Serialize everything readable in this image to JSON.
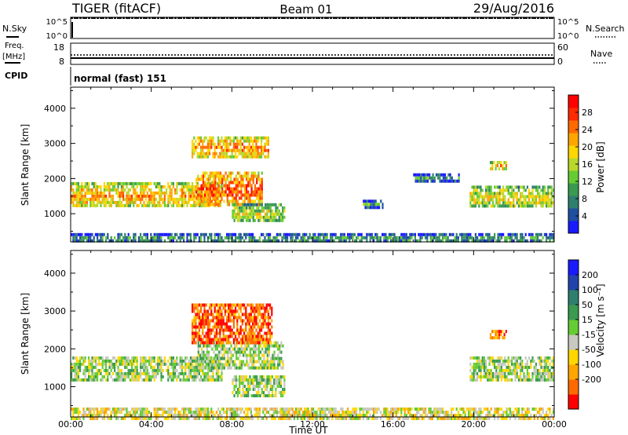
{
  "header": {
    "title": "TIGER (fitACF)",
    "beam": "Beam 01",
    "date": "29/Aug/2016"
  },
  "top_panels": {
    "nsky_label": "N.Sky",
    "nsearch_label": "N.Search",
    "noise_ticks": [
      "10^5",
      "10^0"
    ],
    "freq_label_1": "Freq.",
    "freq_label_2": "[MHz]",
    "freq_ticks": [
      "18",
      "8"
    ],
    "nave_label": "Nave",
    "nave_ticks": [
      "60",
      "0"
    ],
    "cpid_label": "CPID",
    "cpid_value": "normal (fast) 151"
  },
  "colors": {
    "power": [
      "#1a1aff",
      "#1f4fa0",
      "#2f7f6f",
      "#3a9a50",
      "#66cc33",
      "#b9d82b",
      "#ffd700",
      "#ffa500",
      "#ff6a00",
      "#ff2a00",
      "#ff0000"
    ],
    "velocity": [
      "#1a1aff",
      "#2244aa",
      "#2f7f6f",
      "#3a9a50",
      "#66cc33",
      "#c8c8c0",
      "#ffd700",
      "#ffa500",
      "#ff6a00",
      "#ff0000"
    ]
  },
  "chart_data": [
    {
      "type": "heatmap",
      "name": "power",
      "ylabel": "Slant Range [km]",
      "ylim": [
        200,
        4600
      ],
      "yticks": [
        "1000",
        "2000",
        "3000",
        "4000"
      ],
      "xlim": [
        0,
        24
      ],
      "colorbar": {
        "label": "Power [dB]",
        "ticks": [
          "4",
          "8",
          "12",
          "16",
          "20",
          "24",
          "28"
        ],
        "range": [
          0,
          32
        ]
      },
      "regions": [
        {
          "t0": 0.0,
          "t1": 7.5,
          "r0": 1200,
          "r1": 1900,
          "level": 0.55
        },
        {
          "t0": 6.2,
          "t1": 9.5,
          "r0": 1300,
          "r1": 2200,
          "level": 0.7
        },
        {
          "t0": 6.0,
          "t1": 9.8,
          "r0": 2600,
          "r1": 3200,
          "level": 0.6
        },
        {
          "t0": 8.0,
          "t1": 10.6,
          "r0": 800,
          "r1": 1300,
          "level": 0.4
        },
        {
          "t0": 14.5,
          "t1": 15.5,
          "r0": 1200,
          "r1": 1400,
          "level": 0.2
        },
        {
          "t0": 17.0,
          "t1": 19.3,
          "r0": 1950,
          "r1": 2150,
          "level": 0.2
        },
        {
          "t0": 19.8,
          "t1": 24.0,
          "r0": 1200,
          "r1": 1800,
          "level": 0.45
        },
        {
          "t0": 20.8,
          "t1": 21.6,
          "r0": 2300,
          "r1": 2500,
          "level": 0.55
        },
        {
          "t0": 0.0,
          "t1": 24.0,
          "r0": 200,
          "r1": 450,
          "level": 0.2
        }
      ]
    },
    {
      "type": "heatmap",
      "name": "velocity",
      "ylabel": "Slant Range [km]",
      "xlabel": "Time UT",
      "ylim": [
        200,
        4600
      ],
      "yticks": [
        "1000",
        "2000",
        "3000",
        "4000"
      ],
      "xticks": [
        "00:00",
        "04:00",
        "08:00",
        "12:00",
        "16:00",
        "20:00",
        "00:00"
      ],
      "xlim": [
        0,
        24
      ],
      "colorbar": {
        "label": "Velocity [m s⁻¹]",
        "ticks": [
          "200",
          "100",
          "50",
          "15",
          "-15",
          "-50",
          "-100",
          "-200"
        ]
      },
      "regions": [
        {
          "t0": 0.0,
          "t1": 7.5,
          "r0": 1200,
          "r1": 1800,
          "level": 0.5
        },
        {
          "t0": 6.3,
          "t1": 10.5,
          "r0": 1500,
          "r1": 2200,
          "level": 0.5
        },
        {
          "t0": 6.0,
          "t1": 10.0,
          "r0": 2200,
          "r1": 3200,
          "level": 0.85
        },
        {
          "t0": 8.0,
          "t1": 10.6,
          "r0": 800,
          "r1": 1300,
          "level": 0.5
        },
        {
          "t0": 19.8,
          "t1": 24.0,
          "r0": 1200,
          "r1": 1800,
          "level": 0.5
        },
        {
          "t0": 20.8,
          "t1": 21.6,
          "r0": 2300,
          "r1": 2500,
          "level": 0.8
        },
        {
          "t0": 0.0,
          "t1": 24.0,
          "r0": 200,
          "r1": 450,
          "level": 0.6
        }
      ]
    }
  ]
}
